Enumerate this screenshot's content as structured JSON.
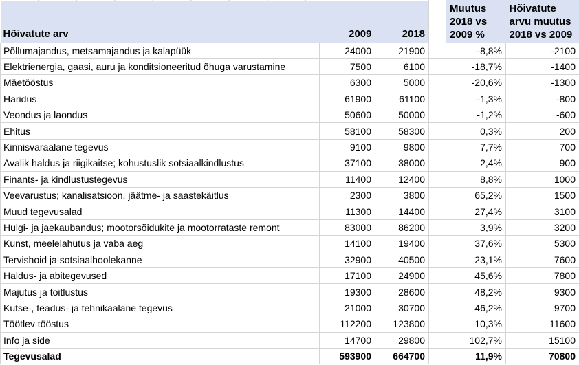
{
  "colors": {
    "header_bg": "#d9e1f2",
    "header_bottom_border": "#9db4dc",
    "gridline": "#d4d4d4",
    "total_top_border": "#000000",
    "text": "#000000",
    "background": "#ffffff"
  },
  "table": {
    "header": {
      "label": "Hõivatute arv",
      "year1": "2009",
      "year2": "2018",
      "pct_lines": [
        "Muutus",
        "2018 vs",
        "2009 %"
      ],
      "diff_lines": [
        "Hõivatute",
        "arvu muutus",
        "2018 vs 2009"
      ],
      "pct_full": "Muutus 2018 vs 2009 %",
      "diff_full": "Hõivatute arvu muutus 2018 vs 2009"
    },
    "rows": [
      {
        "label": "Põllumajandus, metsamajandus ja kalapüük",
        "y2009": "24000",
        "y2018": "21900",
        "pct": "-8,8%",
        "diff": "-2100"
      },
      {
        "label": "Elektrienergia, gaasi, auru ja konditsioneeritud õhuga varustamine",
        "y2009": "7500",
        "y2018": "6100",
        "pct": "-18,7%",
        "diff": "-1400"
      },
      {
        "label": "Mäetööstus",
        "y2009": "6300",
        "y2018": "5000",
        "pct": "-20,6%",
        "diff": "-1300"
      },
      {
        "label": "Haridus",
        "y2009": "61900",
        "y2018": "61100",
        "pct": "-1,3%",
        "diff": "-800"
      },
      {
        "label": "Veondus ja laondus",
        "y2009": "50600",
        "y2018": "50000",
        "pct": "-1,2%",
        "diff": "-600"
      },
      {
        "label": "Ehitus",
        "y2009": "58100",
        "y2018": "58300",
        "pct": "0,3%",
        "diff": "200"
      },
      {
        "label": "Kinnisvaraalane tegevus",
        "y2009": "9100",
        "y2018": "9800",
        "pct": "7,7%",
        "diff": "700"
      },
      {
        "label": "Avalik haldus ja riigikaitse; kohustuslik sotsiaalkindlustus",
        "y2009": "37100",
        "y2018": "38000",
        "pct": "2,4%",
        "diff": "900"
      },
      {
        "label": "Finants- ja kindlustustegevus",
        "y2009": "11400",
        "y2018": "12400",
        "pct": "8,8%",
        "diff": "1000"
      },
      {
        "label": "Veevarustus; kanalisatsioon, jäätme- ja saastekäitlus",
        "y2009": "2300",
        "y2018": "3800",
        "pct": "65,2%",
        "diff": "1500"
      },
      {
        "label": "Muud tegevusalad",
        "y2009": "11300",
        "y2018": "14400",
        "pct": "27,4%",
        "diff": "3100"
      },
      {
        "label": "Hulgi- ja jaekaubandus; mootorsõidukite ja mootorrataste remont",
        "y2009": "83000",
        "y2018": "86200",
        "pct": "3,9%",
        "diff": "3200"
      },
      {
        "label": "Kunst, meelelahutus ja vaba aeg",
        "y2009": "14100",
        "y2018": "19400",
        "pct": "37,6%",
        "diff": "5300"
      },
      {
        "label": "Tervishoid ja sotsiaalhoolekanne",
        "y2009": "32900",
        "y2018": "40500",
        "pct": "23,1%",
        "diff": "7600"
      },
      {
        "label": "Haldus- ja abitegevused",
        "y2009": "17100",
        "y2018": "24900",
        "pct": "45,6%",
        "diff": "7800"
      },
      {
        "label": "Majutus ja toitlustus",
        "y2009": "19300",
        "y2018": "28600",
        "pct": "48,2%",
        "diff": "9300"
      },
      {
        "label": "Kutse-, teadus- ja tehnikaalane tegevus",
        "y2009": "21000",
        "y2018": "30700",
        "pct": "46,2%",
        "diff": "9700"
      },
      {
        "label": "Töötlev tööstus",
        "y2009": "112200",
        "y2018": "123800",
        "pct": "10,3%",
        "diff": "11600"
      },
      {
        "label": "Info ja side",
        "y2009": "14700",
        "y2018": "29800",
        "pct": "102,7%",
        "diff": "15100"
      }
    ],
    "total": {
      "label": "Tegevusalad",
      "y2009": "593900",
      "y2018": "664700",
      "pct": "11,9%",
      "diff": "70800"
    }
  }
}
